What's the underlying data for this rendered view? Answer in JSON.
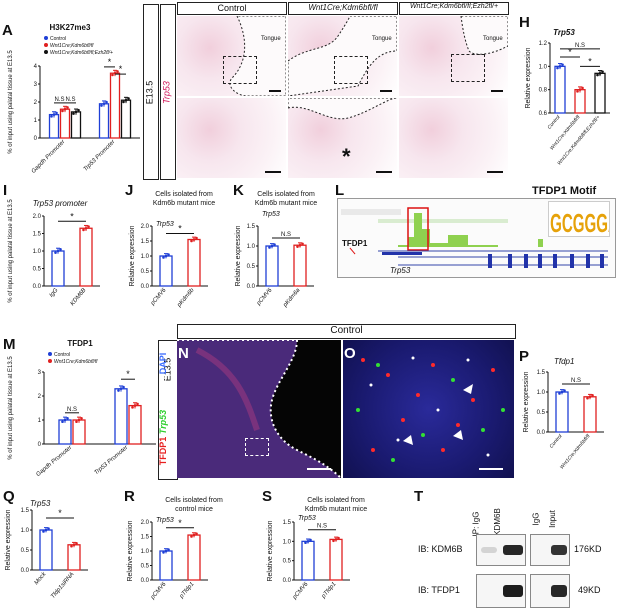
{
  "panels": {
    "A": "A",
    "B": "B",
    "C": "C",
    "D": "D",
    "E": "E",
    "F": "F",
    "G": "G",
    "H": "H",
    "I": "I",
    "J": "J",
    "K": "K",
    "L": "L",
    "M": "M",
    "N": "N",
    "O": "O",
    "P": "P",
    "Q": "Q",
    "R": "R",
    "S": "S",
    "T": "T"
  },
  "colors": {
    "control": "#1f3fd6",
    "kdm6b": "#e02020",
    "ezh2": "#111111",
    "trp53": "#d2185a",
    "tfdp1": "#e82020",
    "green": "#2fcf2f"
  },
  "A": {
    "title": "H3K27me3",
    "legend": [
      "Control",
      "Wnt1Cre;Kdm6bfl/fl",
      "Wnt1Cre;Kdm6bfl/fl;Ezh2fl/+"
    ],
    "ylabel": "% of input using palatal tissue at E13.5",
    "yticks": [
      "0",
      "1",
      "2",
      "3",
      "4"
    ],
    "xticks": [
      "Gapdh Promoter",
      "Trp53 Promoter"
    ],
    "sig": [
      "N.S",
      "N.S",
      "*",
      "*"
    ]
  },
  "micro": {
    "col_titles": [
      "Control",
      "Wnt1Cre;Kdm6bfl/fl",
      "Wnt1Cre;Kdm6bfl/fl;Ezh2fl/+"
    ],
    "side_label": "E13.5",
    "gene": "Trp53",
    "tongue": "Tongue",
    "asterisk": "*"
  },
  "H": {
    "title": "Trp53",
    "ylabel": "Relative expression",
    "yticks": [
      "0.6",
      "0.8",
      "1.0",
      "1.2"
    ],
    "xticks": [
      "Control",
      "Wnt1Cre;Kdm6bfl/fl",
      "Wnt1Cre;Kdm6bfl/fl;Ezh2fl/+"
    ],
    "sig": [
      "N.S",
      "*",
      "*"
    ]
  },
  "I": {
    "title": "Trp53 promoter",
    "ylabel": "% of input using palatal tissue at E13.5",
    "yticks": [
      "0.0",
      "0.5",
      "1.0",
      "1.5",
      "2.0"
    ],
    "xticks": [
      "IgG",
      "KDM6B"
    ],
    "sig": "*"
  },
  "J": {
    "header": "Cells isolated from Kdm6b mutant mice",
    "gene": "Trp53",
    "ylabel": "Relative expression",
    "yticks": [
      "0.0",
      "0.5",
      "1.0",
      "1.5",
      "2.0"
    ],
    "xticks": [
      "pCMV6",
      "pKdm6b"
    ],
    "sig": "*"
  },
  "K": {
    "header": "Cells isolated from Kdm6b mutant mice",
    "gene": "Trp53",
    "ylabel": "Relative expression",
    "yticks": [
      "0.0",
      "0.5",
      "1.0",
      "1.5"
    ],
    "xticks": [
      "pCMV6",
      "pKdm6a"
    ],
    "sig": "N.S"
  },
  "L": {
    "motif_title": "TFDP1 Motif",
    "motif": "GCGGGAA",
    "track": "TFDP1",
    "gene": "Trp53"
  },
  "M": {
    "title": "TFDP1",
    "legend": [
      "Control",
      "Wnt1Cre;Kdm6bfl/fl"
    ],
    "ylabel": "% of input using palatal tissue at E13.5",
    "yticks": [
      "0",
      "1",
      "2",
      "3"
    ],
    "xticks": [
      "Gapdh Promoter",
      "Trp53 Promoter"
    ],
    "sig": [
      "N.S",
      "*"
    ]
  },
  "NO": {
    "title": "Control",
    "side": "E13.5",
    "stain_parts": [
      "TFDP1",
      "/",
      "Trp53",
      "/",
      "Kdm6b",
      "/",
      "DAPI"
    ]
  },
  "P": {
    "title": "Tfdp1",
    "ylabel": "Relative expression",
    "yticks": [
      "0.0",
      "0.5",
      "1.0",
      "1.5"
    ],
    "xticks": [
      "Control",
      "Wnt1Cre;Kdm6bfl/fl"
    ],
    "sig": "N.S"
  },
  "Q": {
    "title": "Trp53",
    "ylabel": "Relative expression",
    "yticks": [
      "0.0",
      "0.5",
      "1.0",
      "1.5"
    ],
    "xticks": [
      "Mock",
      "Tfdp1siRNA"
    ],
    "sig": "*"
  },
  "R": {
    "header": "Cells isolated from control mice",
    "gene": "Trp53",
    "ylabel": "Relative expression",
    "yticks": [
      "0.0",
      "0.5",
      "1.0",
      "1.5",
      "2.0"
    ],
    "xticks": [
      "pCMV6",
      "pTfdp1"
    ],
    "sig": "*"
  },
  "S": {
    "header": "Cells isolated from Kdm6b mutant mice",
    "gene": "Trp53",
    "ylabel": "Relative expression",
    "yticks": [
      "0.0",
      "0.5",
      "1.0",
      "1.5"
    ],
    "xticks": [
      "pCMV6",
      "pTfdp1"
    ],
    "sig": "N.S"
  },
  "T": {
    "lanes": [
      "IP: IgG",
      "IP: KDM6B",
      "IgG",
      "Input"
    ],
    "rows": [
      "IB: KDM6B",
      "IB: TFDP1"
    ],
    "sizes": [
      "176KD",
      "49KD"
    ]
  },
  "chart_data": [
    {
      "panel": "A",
      "type": "bar",
      "title": "H3K27me3",
      "categories": [
        "Gapdh Promoter",
        "Trp53 Promoter"
      ],
      "ylabel": "% of input using palatal tissue at E13.5",
      "ylim": [
        0,
        4
      ],
      "series": [
        {
          "name": "Control",
          "values": [
            1.3,
            1.9
          ]
        },
        {
          "name": "Wnt1Cre;Kdm6bfl/fl",
          "values": [
            1.6,
            3.6
          ]
        },
        {
          "name": "Wnt1Cre;Kdm6bfl/fl;Ezh2fl/+",
          "values": [
            1.45,
            2.1
          ]
        }
      ]
    },
    {
      "panel": "H",
      "type": "bar",
      "title": "Trp53",
      "categories": [
        "Control",
        "Wnt1Cre;Kdm6bfl/fl",
        "Wnt1Cre;Kdm6bfl/fl;Ezh2fl/+"
      ],
      "ylabel": "Relative expression",
      "ylim": [
        0.6,
        1.2
      ],
      "series": [
        {
          "values": [
            1.0,
            0.8,
            0.94
          ]
        }
      ]
    },
    {
      "panel": "I",
      "type": "bar",
      "title": "Trp53 promoter",
      "categories": [
        "IgG",
        "KDM6B"
      ],
      "ylabel": "% of input using palatal tissue at E13.5",
      "ylim": [
        0,
        2
      ],
      "series": [
        {
          "values": [
            1.0,
            1.65
          ]
        }
      ]
    },
    {
      "panel": "J",
      "type": "bar",
      "categories": [
        "pCMV6",
        "pKdm6b"
      ],
      "ylabel": "Relative expression",
      "ylim": [
        0,
        2
      ],
      "series": [
        {
          "values": [
            1.0,
            1.55
          ]
        }
      ]
    },
    {
      "panel": "K",
      "type": "bar",
      "categories": [
        "pCMV6",
        "pKdm6a"
      ],
      "ylabel": "Relative expression",
      "ylim": [
        0,
        1.5
      ],
      "series": [
        {
          "values": [
            1.0,
            1.02
          ]
        }
      ]
    },
    {
      "panel": "M",
      "type": "bar",
      "title": "TFDP1",
      "categories": [
        "Gapdh Promoter",
        "Trp53 Promoter"
      ],
      "ylabel": "% of input using palatal tissue at E13.5",
      "ylim": [
        0,
        3
      ],
      "series": [
        {
          "name": "Control",
          "values": [
            1.0,
            2.3
          ]
        },
        {
          "name": "Wnt1Cre;Kdm6bfl/fl",
          "values": [
            1.0,
            1.6
          ]
        }
      ]
    },
    {
      "panel": "P",
      "type": "bar",
      "title": "Tfdp1",
      "categories": [
        "Control",
        "Wnt1Cre;Kdm6bfl/fl"
      ],
      "ylabel": "Relative expression",
      "ylim": [
        0,
        1.5
      ],
      "series": [
        {
          "values": [
            1.0,
            0.88
          ]
        }
      ]
    },
    {
      "panel": "Q",
      "type": "bar",
      "title": "Trp53",
      "categories": [
        "Mock",
        "Tfdp1siRNA"
      ],
      "ylabel": "Relative expression",
      "ylim": [
        0,
        1.5
      ],
      "series": [
        {
          "values": [
            1.0,
            0.63
          ]
        }
      ]
    },
    {
      "panel": "R",
      "type": "bar",
      "categories": [
        "pCMV6",
        "pTfdp1"
      ],
      "ylabel": "Relative expression",
      "ylim": [
        0,
        2
      ],
      "series": [
        {
          "values": [
            1.0,
            1.55
          ]
        }
      ]
    },
    {
      "panel": "S",
      "type": "bar",
      "categories": [
        "pCMV6",
        "pTfdp1"
      ],
      "ylabel": "Relative expression",
      "ylim": [
        0,
        1.5
      ],
      "series": [
        {
          "values": [
            1.0,
            1.05
          ]
        }
      ]
    }
  ]
}
